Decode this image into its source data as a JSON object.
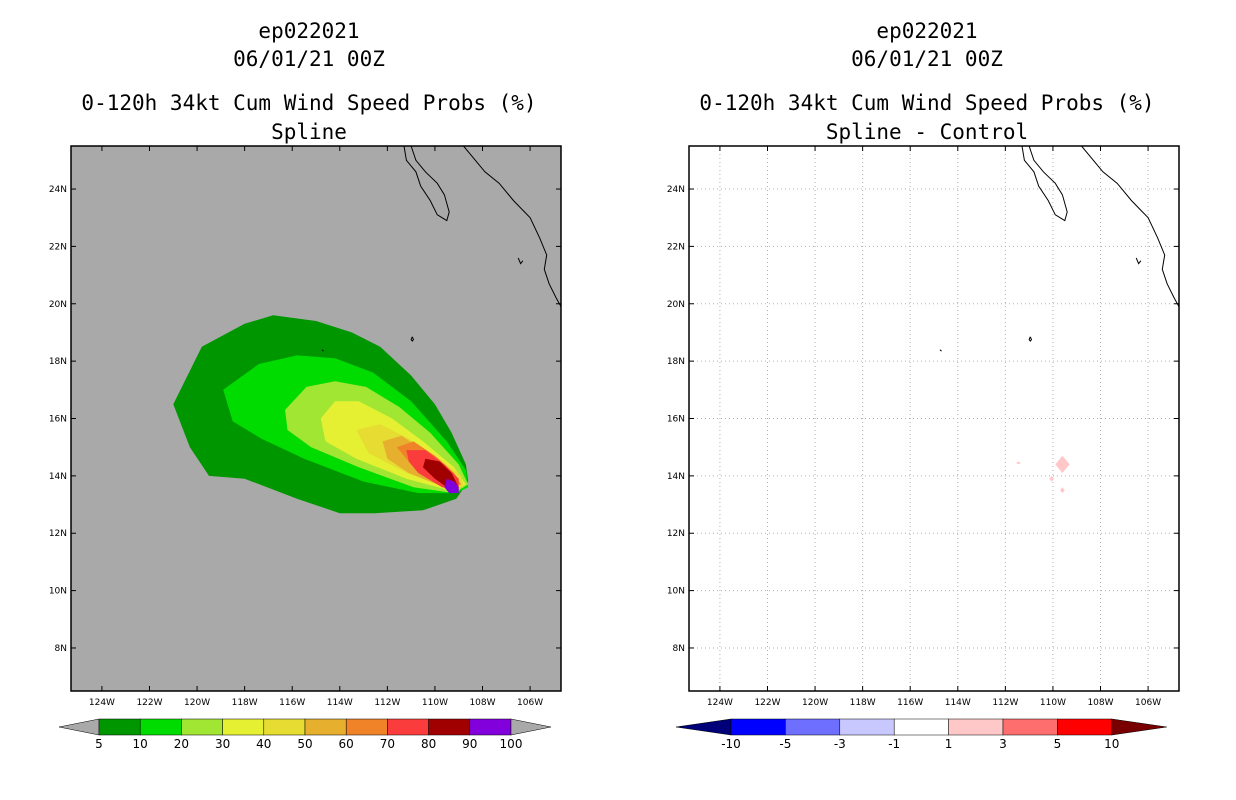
{
  "colors": {
    "land_ocean_left": "#a9a9a9",
    "frame": "#000000",
    "grid": "#b0b0b0",
    "prob_colors": [
      "#a9a9a9",
      "#009600",
      "#00dc00",
      "#a0e632",
      "#e6f032",
      "#e6dc32",
      "#e6af2d",
      "#f08228",
      "#fa3c3c",
      "#a00000",
      "#8200dc",
      "#a9a9a9"
    ],
    "diff_colors": [
      "#000078",
      "#0000ff",
      "#6e6eff",
      "#c8c8ff",
      "#ffffff",
      "#ffc8c8",
      "#ff6e6e",
      "#ff0000",
      "#780000"
    ]
  },
  "chart_data": [
    {
      "id": "left",
      "type": "heatmap",
      "title_lines": [
        "ep022021",
        "06/01/21 00Z",
        "0-120h 34kt Cum Wind Speed Probs (%)",
        "Spline"
      ],
      "xlabel": "",
      "ylabel": "",
      "lon_range": [
        -125.3,
        -104.7
      ],
      "lat_range": [
        6.5,
        25.5
      ],
      "x_ticks": [
        -124,
        -122,
        -120,
        -118,
        -116,
        -114,
        -112,
        -110,
        -108,
        -106
      ],
      "x_tick_labels": [
        "124W",
        "122W",
        "120W",
        "118W",
        "116W",
        "114W",
        "112W",
        "110W",
        "108W",
        "106W"
      ],
      "y_ticks": [
        8,
        10,
        12,
        14,
        16,
        18,
        20,
        22,
        24
      ],
      "y_tick_labels": [
        "8N",
        "10N",
        "12N",
        "14N",
        "16N",
        "18N",
        "20N",
        "22N",
        "24N"
      ],
      "grid": false,
      "contour_levels": [
        {
          "level": 5,
          "color_index": 1,
          "polygon": [
            [
              -121.0,
              16.5
            ],
            [
              -119.8,
              18.5
            ],
            [
              -118.0,
              19.3
            ],
            [
              -116.8,
              19.6
            ],
            [
              -115.0,
              19.4
            ],
            [
              -113.5,
              19.0
            ],
            [
              -112.3,
              18.5
            ],
            [
              -111.0,
              17.5
            ],
            [
              -110.0,
              16.5
            ],
            [
              -109.3,
              15.5
            ],
            [
              -108.7,
              14.4
            ],
            [
              -108.6,
              13.8
            ],
            [
              -109.1,
              13.2
            ],
            [
              -110.5,
              12.8
            ],
            [
              -112.5,
              12.7
            ],
            [
              -114.0,
              12.7
            ],
            [
              -115.8,
              13.2
            ],
            [
              -118.0,
              13.9
            ],
            [
              -119.5,
              14.0
            ],
            [
              -120.3,
              15.0
            ]
          ]
        },
        {
          "level": 10,
          "color_index": 2,
          "polygon": [
            [
              -118.9,
              17.0
            ],
            [
              -117.4,
              17.9
            ],
            [
              -115.8,
              18.2
            ],
            [
              -114.2,
              18.1
            ],
            [
              -112.6,
              17.6
            ],
            [
              -111.0,
              16.6
            ],
            [
              -109.5,
              15.2
            ],
            [
              -108.7,
              14.2
            ],
            [
              -108.6,
              13.6
            ],
            [
              -109.1,
              13.4
            ],
            [
              -110.7,
              13.4
            ],
            [
              -113.0,
              13.8
            ],
            [
              -115.5,
              14.6
            ],
            [
              -117.3,
              15.3
            ],
            [
              -118.5,
              15.9
            ]
          ]
        },
        {
          "level": 20,
          "color_index": 3,
          "polygon": [
            [
              -116.3,
              16.3
            ],
            [
              -115.4,
              17.1
            ],
            [
              -114.2,
              17.3
            ],
            [
              -112.9,
              17.1
            ],
            [
              -111.5,
              16.4
            ],
            [
              -110.2,
              15.5
            ],
            [
              -109.0,
              14.4
            ],
            [
              -108.6,
              13.7
            ],
            [
              -109.2,
              13.4
            ],
            [
              -110.9,
              13.6
            ],
            [
              -113.2,
              14.3
            ],
            [
              -115.2,
              15.0
            ],
            [
              -116.2,
              15.6
            ]
          ]
        },
        {
          "level": 30,
          "color_index": 4,
          "polygon": [
            [
              -114.8,
              16.0
            ],
            [
              -114.2,
              16.6
            ],
            [
              -113.2,
              16.6
            ],
            [
              -111.8,
              16.0
            ],
            [
              -110.5,
              15.2
            ],
            [
              -109.2,
              14.3
            ],
            [
              -108.7,
              13.7
            ],
            [
              -109.4,
              13.5
            ],
            [
              -111.2,
              13.9
            ],
            [
              -113.3,
              14.6
            ],
            [
              -114.6,
              15.2
            ]
          ]
        },
        {
          "level": 40,
          "color_index": 5,
          "polygon": [
            [
              -113.3,
              15.6
            ],
            [
              -112.3,
              15.8
            ],
            [
              -111.1,
              15.3
            ],
            [
              -109.8,
              14.6
            ],
            [
              -108.9,
              14.0
            ],
            [
              -108.8,
              13.6
            ],
            [
              -109.6,
              13.6
            ],
            [
              -111.2,
              14.1
            ],
            [
              -112.8,
              14.8
            ]
          ]
        },
        {
          "level": 50,
          "color_index": 6,
          "polygon": [
            [
              -112.2,
              15.2
            ],
            [
              -111.4,
              15.4
            ],
            [
              -110.5,
              14.9
            ],
            [
              -109.4,
              14.2
            ],
            [
              -108.9,
              13.7
            ],
            [
              -109.6,
              13.6
            ],
            [
              -111.1,
              14.1
            ],
            [
              -112.0,
              14.6
            ]
          ]
        },
        {
          "level": 60,
          "color_index": 7,
          "polygon": [
            [
              -111.6,
              15.0
            ],
            [
              -110.9,
              15.2
            ],
            [
              -110.0,
              14.7
            ],
            [
              -109.2,
              14.1
            ],
            [
              -108.9,
              13.7
            ],
            [
              -109.6,
              13.6
            ],
            [
              -110.8,
              14.2
            ]
          ]
        },
        {
          "level": 70,
          "color_index": 8,
          "polygon": [
            [
              -111.2,
              14.9
            ],
            [
              -110.4,
              14.9
            ],
            [
              -109.6,
              14.4
            ],
            [
              -109.0,
              13.9
            ],
            [
              -109.0,
              13.5
            ],
            [
              -109.7,
              13.6
            ],
            [
              -110.7,
              14.1
            ],
            [
              -111.1,
              14.5
            ]
          ]
        },
        {
          "level": 80,
          "color_index": 9,
          "polygon": [
            [
              -110.4,
              14.6
            ],
            [
              -109.8,
              14.5
            ],
            [
              -109.3,
              14.1
            ],
            [
              -109.0,
              13.6
            ],
            [
              -109.5,
              13.6
            ],
            [
              -110.0,
              13.9
            ],
            [
              -110.5,
              14.3
            ]
          ]
        },
        {
          "level": 90,
          "color_index": 10,
          "polygon": [
            [
              -109.5,
              13.9
            ],
            [
              -109.2,
              13.8
            ],
            [
              -109.0,
              13.6
            ],
            [
              -109.0,
              13.4
            ],
            [
              -109.4,
              13.4
            ],
            [
              -109.6,
              13.6
            ]
          ]
        }
      ],
      "colorbar": {
        "labels": [
          "5",
          "10",
          "20",
          "30",
          "40",
          "50",
          "60",
          "70",
          "80",
          "90",
          "100"
        ],
        "color_count": 10,
        "arrows": true
      }
    },
    {
      "id": "right",
      "type": "heatmap",
      "title_lines": [
        "ep022021",
        "06/01/21 00Z",
        "0-120h 34kt Cum Wind Speed Probs (%)",
        "Spline - Control"
      ],
      "xlabel": "",
      "ylabel": "",
      "lon_range": [
        -125.3,
        -104.7
      ],
      "lat_range": [
        6.5,
        25.5
      ],
      "x_ticks": [
        -124,
        -122,
        -120,
        -118,
        -116,
        -114,
        -112,
        -110,
        -108,
        -106
      ],
      "x_tick_labels": [
        "124W",
        "122W",
        "120W",
        "118W",
        "116W",
        "114W",
        "112W",
        "110W",
        "108W",
        "106W"
      ],
      "y_ticks": [
        8,
        10,
        12,
        14,
        16,
        18,
        20,
        22,
        24
      ],
      "y_tick_labels": [
        "8N",
        "10N",
        "12N",
        "14N",
        "16N",
        "18N",
        "20N",
        "22N",
        "24N"
      ],
      "grid": true,
      "diff_regions": [
        {
          "value_range": "1 to 3",
          "color_index": 5,
          "polygon": [
            [
              -109.6,
              14.7
            ],
            [
              -109.3,
              14.4
            ],
            [
              -109.6,
              14.1
            ],
            [
              -109.9,
              14.4
            ]
          ]
        },
        {
          "value_range": "1 to 3",
          "color_index": 5,
          "polygon": [
            [
              -111.45,
              14.5
            ],
            [
              -111.35,
              14.45
            ],
            [
              -111.45,
              14.4
            ],
            [
              -111.55,
              14.45
            ]
          ]
        },
        {
          "value_range": "1 to 3",
          "color_index": 5,
          "polygon": [
            [
              -110.05,
              14.0
            ],
            [
              -109.95,
              13.9
            ],
            [
              -110.05,
              13.8
            ],
            [
              -110.15,
              13.9
            ]
          ]
        },
        {
          "value_range": "1 to 3",
          "color_index": 5,
          "polygon": [
            [
              -109.6,
              13.6
            ],
            [
              -109.5,
              13.5
            ],
            [
              -109.6,
              13.4
            ],
            [
              -109.7,
              13.5
            ]
          ]
        }
      ],
      "colorbar": {
        "labels": [
          "-10",
          "-5",
          "-3",
          "-1",
          "1",
          "3",
          "5",
          "10"
        ],
        "color_count": 7,
        "arrows": true
      }
    }
  ],
  "coastline": [
    [
      [
        -111.3,
        25.5
      ],
      [
        -111.2,
        25.0
      ],
      [
        -110.8,
        24.6
      ],
      [
        -110.6,
        24.1
      ],
      [
        -110.2,
        23.6
      ],
      [
        -109.9,
        23.1
      ],
      [
        -109.5,
        22.9
      ],
      [
        -109.4,
        23.2
      ],
      [
        -109.6,
        23.8
      ],
      [
        -109.9,
        24.2
      ],
      [
        -110.4,
        24.6
      ],
      [
        -110.8,
        25.0
      ],
      [
        -111.0,
        25.5
      ]
    ],
    [
      [
        -108.8,
        25.5
      ],
      [
        -107.9,
        24.6
      ],
      [
        -107.3,
        24.2
      ],
      [
        -106.7,
        23.6
      ],
      [
        -106.0,
        23.0
      ],
      [
        -105.6,
        22.3
      ],
      [
        -105.3,
        21.7
      ],
      [
        -105.4,
        21.2
      ],
      [
        -105.2,
        20.7
      ],
      [
        -104.9,
        20.2
      ],
      [
        -104.7,
        19.9
      ]
    ],
    [
      [
        -110.95,
        18.85
      ],
      [
        -110.9,
        18.75
      ],
      [
        -110.95,
        18.7
      ],
      [
        -111.0,
        18.75
      ],
      [
        -110.95,
        18.85
      ]
    ],
    [
      [
        -114.75,
        18.4
      ],
      [
        -114.68,
        18.35
      ]
    ],
    [
      [
        -106.5,
        21.6
      ],
      [
        -106.4,
        21.4
      ],
      [
        -106.3,
        21.5
      ]
    ]
  ]
}
